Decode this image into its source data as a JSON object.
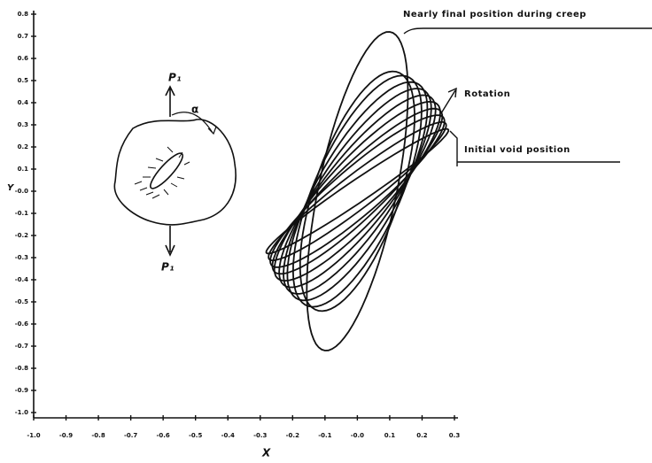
{
  "chart_data": {
    "type": "ellipses",
    "x_label": "X",
    "y_label": "Y",
    "xlim": [
      -1.0,
      0.3
    ],
    "xticks": [
      {
        "value": -1,
        "label": "-1.0"
      },
      -0.9,
      -0.8,
      -0.7,
      -0.6,
      -0.5,
      -0.4,
      -0.3,
      -0.2,
      -0.1,
      {
        "value": 0,
        "label": "-0.0"
      },
      0.1,
      0.2,
      0.3
    ],
    "ylim": [
      -1.0,
      0.8
    ],
    "yticks": [
      0.8,
      0.7,
      0.6,
      0.5,
      0.4,
      0.3,
      0.2,
      0.1,
      {
        "value": 0,
        "label": "-0.0"
      },
      -0.1,
      -0.2,
      -0.3,
      -0.4,
      -0.5,
      -0.6,
      -0.7,
      -0.8,
      -0.9,
      {
        "value": -1,
        "label": "-1.0"
      }
    ],
    "color": "#111111",
    "ellipses": [
      {
        "major": [
          0.28,
          0.28
        ],
        "minor": [
          -0.03,
          0.03
        ]
      },
      {
        "major": [
          0.27,
          0.31
        ],
        "minor": [
          -0.05,
          0.04
        ]
      },
      {
        "major": [
          0.26,
          0.34
        ],
        "minor": [
          -0.07,
          0.05
        ]
      },
      {
        "major": [
          0.25,
          0.37
        ],
        "minor": [
          -0.08,
          0.05
        ]
      },
      {
        "major": [
          0.24,
          0.4
        ],
        "minor": [
          -0.09,
          0.06
        ]
      },
      {
        "major": [
          0.22,
          0.43
        ],
        "minor": [
          -0.1,
          0.06
        ]
      },
      {
        "major": [
          0.2,
          0.46
        ],
        "minor": [
          -0.11,
          0.06
        ]
      },
      {
        "major": [
          0.18,
          0.49
        ],
        "minor": [
          -0.12,
          0.06
        ]
      },
      {
        "major": [
          0.15,
          0.52
        ],
        "minor": [
          -0.13,
          0.05
        ]
      },
      {
        "major": [
          0.12,
          0.54
        ],
        "minor": [
          -0.13,
          0.04
        ]
      },
      {
        "major": [
          0.1,
          0.72
        ],
        "minor": [
          0.12,
          -0.02
        ]
      }
    ],
    "annotations": {
      "final": "Nearly final position during creep",
      "rotation": "Rotation",
      "initial": "Initial void position",
      "load_top": "P₁",
      "load_bottom": "P₁",
      "angle": "α"
    }
  }
}
